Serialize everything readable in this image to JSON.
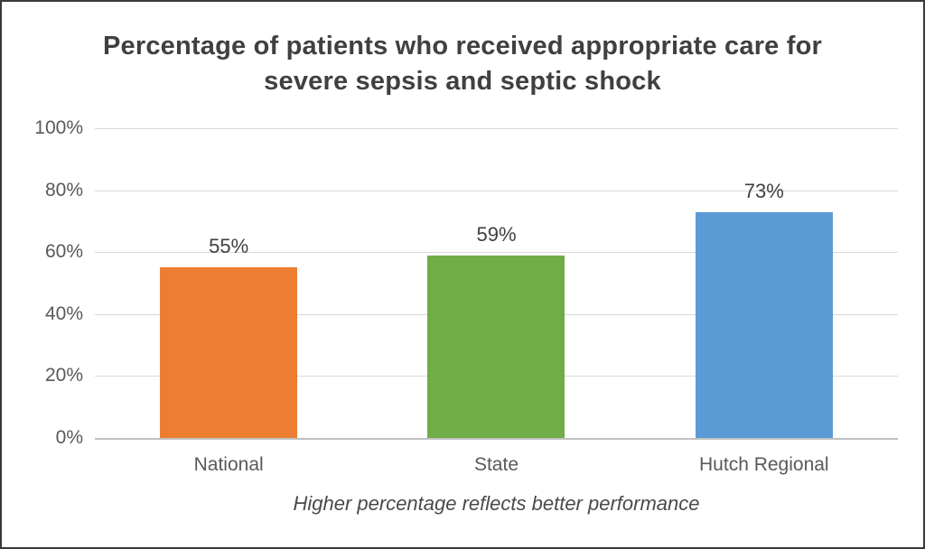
{
  "chart_data": {
    "type": "bar",
    "title": "Percentage of patients who received appropriate care for severe sepsis and septic shock",
    "title_lines": [
      "Percentage of patients who received appropriate care for",
      "severe sepsis and septic shock"
    ],
    "categories": [
      "National",
      "State",
      "Hutch Regional"
    ],
    "values": [
      55,
      59,
      73
    ],
    "value_labels": [
      "55%",
      "59%",
      "73%"
    ],
    "bar_colors": [
      "#ED7D31",
      "#70AD47",
      "#5B9BD5"
    ],
    "ylim": [
      0,
      100
    ],
    "yticks": [
      {
        "value": 0,
        "label": "0%"
      },
      {
        "value": 20,
        "label": "20%"
      },
      {
        "value": 40,
        "label": "40%"
      },
      {
        "value": 60,
        "label": "60%"
      },
      {
        "value": 80,
        "label": "80%"
      },
      {
        "value": 100,
        "label": "100%"
      }
    ],
    "grid": true,
    "legend_position": "none",
    "xlabel": "",
    "ylabel": "",
    "footnote": "Higher percentage reflects better performance"
  }
}
